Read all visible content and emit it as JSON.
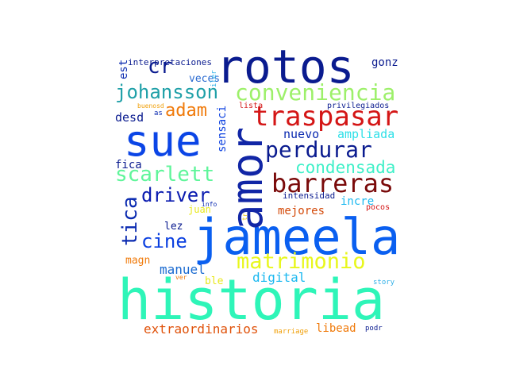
{
  "words": [
    {
      "text": "historia",
      "color": "#2ef5b8"
    },
    {
      "text": "jameela",
      "color": "#0a5ff0"
    },
    {
      "text": "rotos",
      "color": "#0a1b8f"
    },
    {
      "text": "amor",
      "color": "#1126a6"
    },
    {
      "text": "sue",
      "color": "#0b45e6"
    },
    {
      "text": "traspasar",
      "color": "#d41616"
    },
    {
      "text": "barreras",
      "color": "#7a0a0a"
    },
    {
      "text": "conveniencia",
      "color": "#9df06a"
    },
    {
      "text": "matrimonio",
      "color": "#e8f71c"
    },
    {
      "text": "perdurar",
      "color": "#0a1b8f"
    },
    {
      "text": "scarlett",
      "color": "#5ff59a"
    },
    {
      "text": "johansson",
      "color": "#1fa0a8"
    },
    {
      "text": "condensada",
      "color": "#3ff0c8"
    },
    {
      "text": "driver",
      "color": "#0a1bb0"
    },
    {
      "text": "adam",
      "color": "#f07a0a"
    },
    {
      "text": "cr",
      "color": "#0a1b8f"
    },
    {
      "text": "tica",
      "color": "#0a2ab0"
    },
    {
      "text": "cine",
      "color": "#0a3fe0"
    },
    {
      "text": "ampliada",
      "color": "#2fe0e8"
    },
    {
      "text": "nuevo",
      "color": "#0a2ab0"
    },
    {
      "text": "mejores",
      "color": "#d44a0a"
    },
    {
      "text": "digital",
      "color": "#1ab8f0"
    },
    {
      "text": "manuel",
      "color": "#1a6ad0"
    },
    {
      "text": "extraordinarios",
      "color": "#e0520a"
    },
    {
      "text": "libead",
      "color": "#f07a0a"
    },
    {
      "text": "desd",
      "color": "#0a1b8f"
    },
    {
      "text": "sensaci",
      "color": "#0a3fe0"
    },
    {
      "text": "fica",
      "color": "#0a1b8f"
    },
    {
      "text": "veces",
      "color": "#2a6ad0"
    },
    {
      "text": "gonz",
      "color": "#0a1b8f"
    },
    {
      "text": "est",
      "color": "#0a2ab0"
    },
    {
      "text": "interpretaciones",
      "color": "#0a1b8f"
    },
    {
      "text": "lez",
      "color": "#0a1b8f"
    },
    {
      "text": "juan",
      "color": "#e8e81c"
    },
    {
      "text": "incre",
      "color": "#1ab8f0"
    },
    {
      "text": "intensidad",
      "color": "#0a1b8f"
    },
    {
      "text": "magn",
      "color": "#f07a0a"
    },
    {
      "text": "ble",
      "color": "#e8e81c"
    },
    {
      "text": "privilegiados",
      "color": "#0a1b8f"
    },
    {
      "text": "lista",
      "color": "#d41616"
    },
    {
      "text": "buenosd",
      "color": "#f0a00a"
    },
    {
      "text": "as",
      "color": "#0a2ab0"
    },
    {
      "text": "iler",
      "color": "#2fb0e8"
    },
    {
      "text": "info",
      "color": "#0a2ab0"
    },
    {
      "text": "tr",
      "color": "#e8c81c"
    },
    {
      "text": "pocos",
      "color": "#d41616"
    },
    {
      "text": "ver",
      "color": "#f07a0a"
    },
    {
      "text": "story",
      "color": "#2fb0e8"
    },
    {
      "text": "marriage",
      "color": "#f0a00a"
    },
    {
      "text": "podr",
      "color": "#0a1b8f"
    }
  ]
}
